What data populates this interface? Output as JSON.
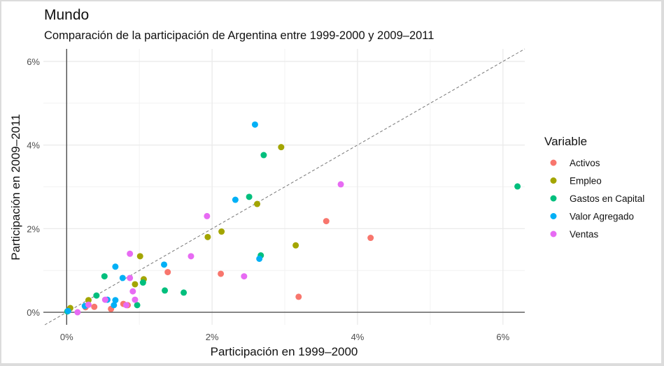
{
  "chart_data": {
    "type": "scatter",
    "title": "Mundo",
    "subtitle": "Comparación de la participación de Argentina entre 1999-2000 y 2009–2011",
    "xlabel": "Participación en 1999–2000",
    "ylabel": "Participación en 2009–2011",
    "xlim": [
      -0.32,
      6.3
    ],
    "ylim": [
      -0.3,
      6.3
    ],
    "x_ticks": [
      {
        "value": 0,
        "label": "0%"
      },
      {
        "value": 2,
        "label": "2%"
      },
      {
        "value": 4,
        "label": "4%"
      },
      {
        "value": 6,
        "label": "6%"
      }
    ],
    "y_ticks": [
      {
        "value": 0,
        "label": "0%"
      },
      {
        "value": 2,
        "label": "2%"
      },
      {
        "value": 4,
        "label": "4%"
      },
      {
        "value": 6,
        "label": "6%"
      }
    ],
    "minor_grid": [
      1,
      3,
      5
    ],
    "grid": true,
    "reference_line": "y = x (dashed)",
    "legend": {
      "title": "Variable",
      "position": "right"
    },
    "series": [
      {
        "name": "Activos",
        "color": "#F8766D",
        "points": [
          [
            1.39,
            0.96
          ],
          [
            2.12,
            0.92
          ],
          [
            3.19,
            0.37
          ],
          [
            3.57,
            2.18
          ],
          [
            4.18,
            1.78
          ],
          [
            0.38,
            0.13
          ],
          [
            0.61,
            0.08
          ],
          [
            0.78,
            0.2
          ],
          [
            0.84,
            0.17
          ],
          [
            0.26,
            0.12
          ]
        ]
      },
      {
        "name": "Empleo",
        "color": "#A3A500",
        "points": [
          [
            0.05,
            0.1
          ],
          [
            0.3,
            0.29
          ],
          [
            0.94,
            0.67
          ],
          [
            1.01,
            1.34
          ],
          [
            1.06,
            0.79
          ],
          [
            1.94,
            1.8
          ],
          [
            2.13,
            1.93
          ],
          [
            2.62,
            2.59
          ],
          [
            2.95,
            3.95
          ],
          [
            3.15,
            1.6
          ]
        ]
      },
      {
        "name": "Gastos en Capital",
        "color": "#00BF7D",
        "points": [
          [
            0.01,
            0.02
          ],
          [
            0.41,
            0.4
          ],
          [
            0.52,
            0.86
          ],
          [
            0.97,
            0.17
          ],
          [
            1.05,
            0.71
          ],
          [
            1.35,
            0.52
          ],
          [
            1.61,
            0.47
          ],
          [
            2.51,
            2.76
          ],
          [
            2.71,
            3.76
          ],
          [
            2.67,
            1.36
          ],
          [
            6.2,
            3.01
          ]
        ]
      },
      {
        "name": "Valor Agregado",
        "color": "#00B0F6",
        "points": [
          [
            0.02,
            0.03
          ],
          [
            0.25,
            0.15
          ],
          [
            0.56,
            0.3
          ],
          [
            0.65,
            0.17
          ],
          [
            0.67,
            0.29
          ],
          [
            0.67,
            1.09
          ],
          [
            0.77,
            0.82
          ],
          [
            1.34,
            1.14
          ],
          [
            2.32,
            2.69
          ],
          [
            2.59,
            4.49
          ],
          [
            2.65,
            1.28
          ]
        ]
      },
      {
        "name": "Ventas",
        "color": "#E76BF3",
        "points": [
          [
            0.15,
            0.0
          ],
          [
            0.3,
            0.18
          ],
          [
            0.53,
            0.3
          ],
          [
            0.87,
            1.4
          ],
          [
            0.87,
            0.82
          ],
          [
            0.91,
            0.5
          ],
          [
            0.94,
            0.3
          ],
          [
            0.82,
            0.17
          ],
          [
            1.93,
            2.3
          ],
          [
            1.71,
            1.34
          ],
          [
            2.44,
            0.86
          ],
          [
            3.77,
            3.06
          ]
        ]
      }
    ]
  }
}
